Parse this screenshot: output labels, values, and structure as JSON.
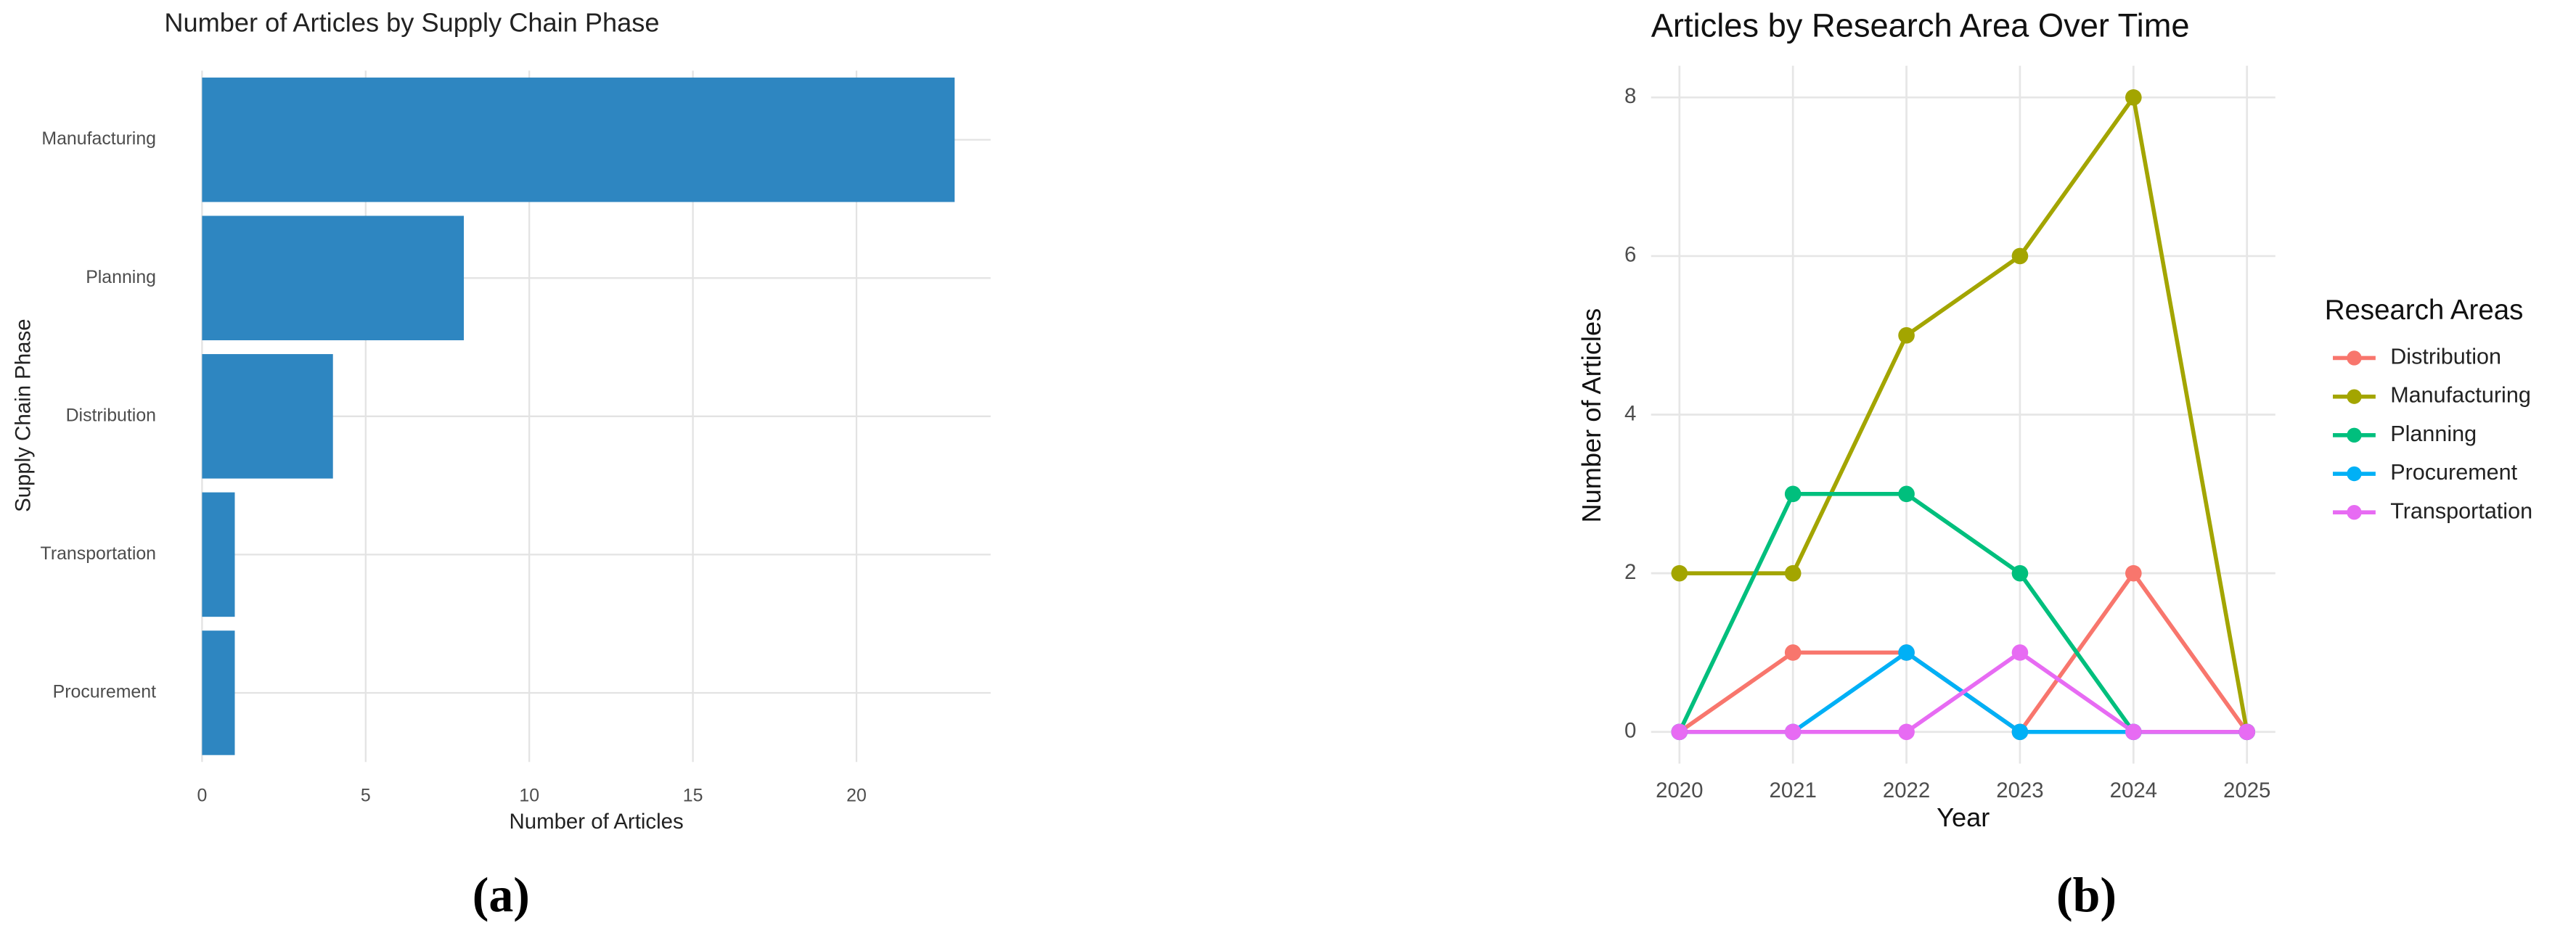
{
  "chart_data": [
    {
      "type": "hbar",
      "title": "Number of Articles by Supply Chain Phase",
      "x_label": "Number of Articles",
      "y_label": "Supply Chain Phase",
      "categories": [
        "Manufacturing",
        "Planning",
        "Distribution",
        "Transportation",
        "Procurement"
      ],
      "values": [
        23,
        8,
        4,
        1,
        1
      ],
      "color": "#2E86C1",
      "xlim": [
        0,
        24.1
      ],
      "xticks": [
        0,
        5,
        10,
        15,
        20
      ],
      "grid": true,
      "caption": "(a)"
    },
    {
      "type": "line",
      "title": "Articles by Research Area Over Time",
      "x_label": "Year",
      "y_label": "Number of Articles",
      "legend_title": "Research Areas",
      "legend": "right",
      "x": [
        2020,
        2021,
        2022,
        2023,
        2024,
        2025
      ],
      "series": [
        {
          "name": "Distribution",
          "color": "#F8766D",
          "values": [
            0,
            1,
            1,
            0,
            2,
            0
          ]
        },
        {
          "name": "Manufacturing",
          "color": "#A3A500",
          "values": [
            2,
            2,
            5,
            6,
            8,
            0
          ]
        },
        {
          "name": "Planning",
          "color": "#00BF7D",
          "values": [
            0,
            3,
            3,
            2,
            0,
            0
          ]
        },
        {
          "name": "Procurement",
          "color": "#00B0F6",
          "values": [
            0,
            0,
            1,
            0,
            0,
            0
          ]
        },
        {
          "name": "Transportation",
          "color": "#E76BF3",
          "values": [
            0,
            0,
            0,
            1,
            0,
            0
          ]
        }
      ],
      "xlim": [
        2019.75,
        2025.25
      ],
      "xticks": [
        2020,
        2021,
        2022,
        2023,
        2024,
        2025
      ],
      "ylim": [
        -0.4,
        8.4
      ],
      "yticks": [
        0,
        2,
        4,
        6,
        8
      ],
      "grid": true,
      "caption": "(b)"
    }
  ]
}
